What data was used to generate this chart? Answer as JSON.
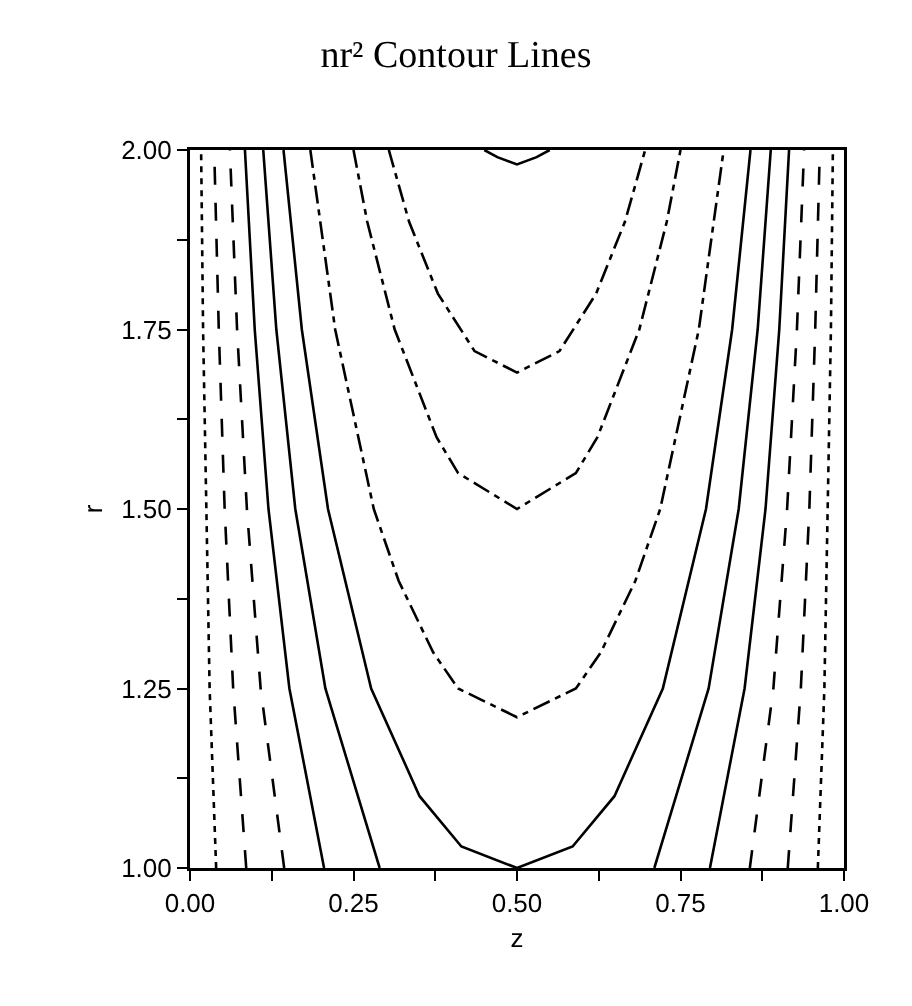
{
  "chart_data": {
    "type": "line",
    "title": "nr² Contour Lines",
    "xlabel": "z",
    "ylabel": "r",
    "xlim": [
      0,
      1
    ],
    "ylim": [
      1,
      2
    ],
    "xticks": [
      {
        "value": 0,
        "label": "0.00"
      },
      {
        "value": 0.125,
        "label": null
      },
      {
        "value": 0.25,
        "label": "0.25"
      },
      {
        "value": 0.375,
        "label": null
      },
      {
        "value": 0.5,
        "label": "0.50"
      },
      {
        "value": 0.625,
        "label": null
      },
      {
        "value": 0.75,
        "label": "0.75"
      },
      {
        "value": 0.875,
        "label": null
      },
      {
        "value": 1,
        "label": "1.00"
      }
    ],
    "yticks": [
      {
        "value": 1,
        "label": "1.00"
      },
      {
        "value": 1.125,
        "label": null
      },
      {
        "value": 1.25,
        "label": "1.25"
      },
      {
        "value": 1.375,
        "label": null
      },
      {
        "value": 1.5,
        "label": "1.50"
      },
      {
        "value": 1.625,
        "label": null
      },
      {
        "value": 1.75,
        "label": "1.75"
      },
      {
        "value": 1.875,
        "label": null
      },
      {
        "value": 2,
        "label": "2.00"
      }
    ],
    "grid": false,
    "marker": "none",
    "series": [
      {
        "color": "#000000",
        "line_style": "dotted",
        "x": [
          0.04,
          0.03,
          0.025,
          0.02,
          0.017
        ],
        "values": [
          1,
          1.25,
          1.5,
          1.75,
          2
        ]
      },
      {
        "color": "#000000",
        "line_style": "dashed",
        "x": [
          0.086,
          0.066,
          0.053,
          0.044,
          0.037
        ],
        "values": [
          1,
          1.25,
          1.5,
          1.75,
          2
        ]
      },
      {
        "color": "#000000",
        "line_style": "dashed",
        "x": [
          0.144,
          0.108,
          0.087,
          0.072,
          0.061
        ],
        "values": [
          1,
          1.25,
          1.5,
          1.75,
          2
        ]
      },
      {
        "color": "#000000",
        "line_style": "solid",
        "x": [
          0.205,
          0.152,
          0.12,
          0.099,
          0.084
        ],
        "values": [
          1,
          1.25,
          1.5,
          1.75,
          2
        ]
      },
      {
        "color": "#000000",
        "line_style": "solid",
        "x": [
          0.29,
          0.207,
          0.161,
          0.132,
          0.112
        ],
        "values": [
          1,
          1.25,
          1.5,
          1.75,
          2
        ]
      },
      {
        "color": "#000000",
        "line_style": "solid",
        "x": [
          0.143,
          0.171,
          0.211,
          0.277,
          0.351,
          0.415,
          0.5,
          0.585,
          0.649,
          0.723,
          0.789,
          0.829,
          0.857
        ],
        "values": [
          2,
          1.75,
          1.5,
          1.25,
          1.1,
          1.03,
          1,
          1.03,
          1.1,
          1.25,
          1.5,
          1.75,
          2
        ]
      },
      {
        "color": "#000000",
        "line_style": "dashdot",
        "x": [
          0.184,
          0.222,
          0.281,
          0.319,
          0.372,
          0.41,
          0.5,
          0.59,
          0.628,
          0.681,
          0.719,
          0.778,
          0.816
        ],
        "values": [
          2,
          1.75,
          1.5,
          1.4,
          1.3,
          1.25,
          1.21,
          1.25,
          1.3,
          1.4,
          1.5,
          1.75,
          2
        ]
      },
      {
        "color": "#000000",
        "line_style": "dashdot",
        "x": [
          0.25,
          0.271,
          0.313,
          0.377,
          0.41,
          0.5,
          0.59,
          0.623,
          0.687,
          0.729,
          0.75
        ],
        "values": [
          2,
          1.9,
          1.75,
          1.6,
          1.55,
          1.5,
          1.55,
          1.6,
          1.75,
          1.9,
          2
        ]
      },
      {
        "color": "#000000",
        "line_style": "dashdot",
        "x": [
          0.304,
          0.335,
          0.379,
          0.435,
          0.5,
          0.565,
          0.621,
          0.665,
          0.696
        ],
        "values": [
          2,
          1.9,
          1.8,
          1.72,
          1.69,
          1.72,
          1.8,
          1.9,
          2
        ]
      },
      {
        "color": "#000000",
        "line_style": "solid",
        "x": [
          0.45,
          0.47,
          0.5,
          0.53,
          0.55
        ],
        "values": [
          2,
          1.99,
          1.98,
          1.99,
          2
        ]
      },
      {
        "color": "#000000",
        "line_style": "solid",
        "x": [
          0.71,
          0.793,
          0.839,
          0.868,
          0.888
        ],
        "values": [
          1,
          1.25,
          1.5,
          1.75,
          2
        ]
      },
      {
        "color": "#000000",
        "line_style": "solid",
        "x": [
          0.795,
          0.848,
          0.88,
          0.901,
          0.916
        ],
        "values": [
          1,
          1.25,
          1.5,
          1.75,
          2
        ]
      },
      {
        "color": "#000000",
        "line_style": "dashed",
        "x": [
          0.856,
          0.892,
          0.913,
          0.928,
          0.939
        ],
        "values": [
          1,
          1.25,
          1.5,
          1.75,
          2
        ]
      },
      {
        "color": "#000000",
        "line_style": "dashed",
        "x": [
          0.914,
          0.934,
          0.947,
          0.956,
          0.963
        ],
        "values": [
          1,
          1.25,
          1.5,
          1.75,
          2
        ]
      },
      {
        "color": "#000000",
        "line_style": "dotted",
        "x": [
          0.96,
          0.97,
          0.975,
          0.98,
          0.983
        ],
        "values": [
          1,
          1.25,
          1.5,
          1.75,
          2
        ]
      }
    ]
  }
}
